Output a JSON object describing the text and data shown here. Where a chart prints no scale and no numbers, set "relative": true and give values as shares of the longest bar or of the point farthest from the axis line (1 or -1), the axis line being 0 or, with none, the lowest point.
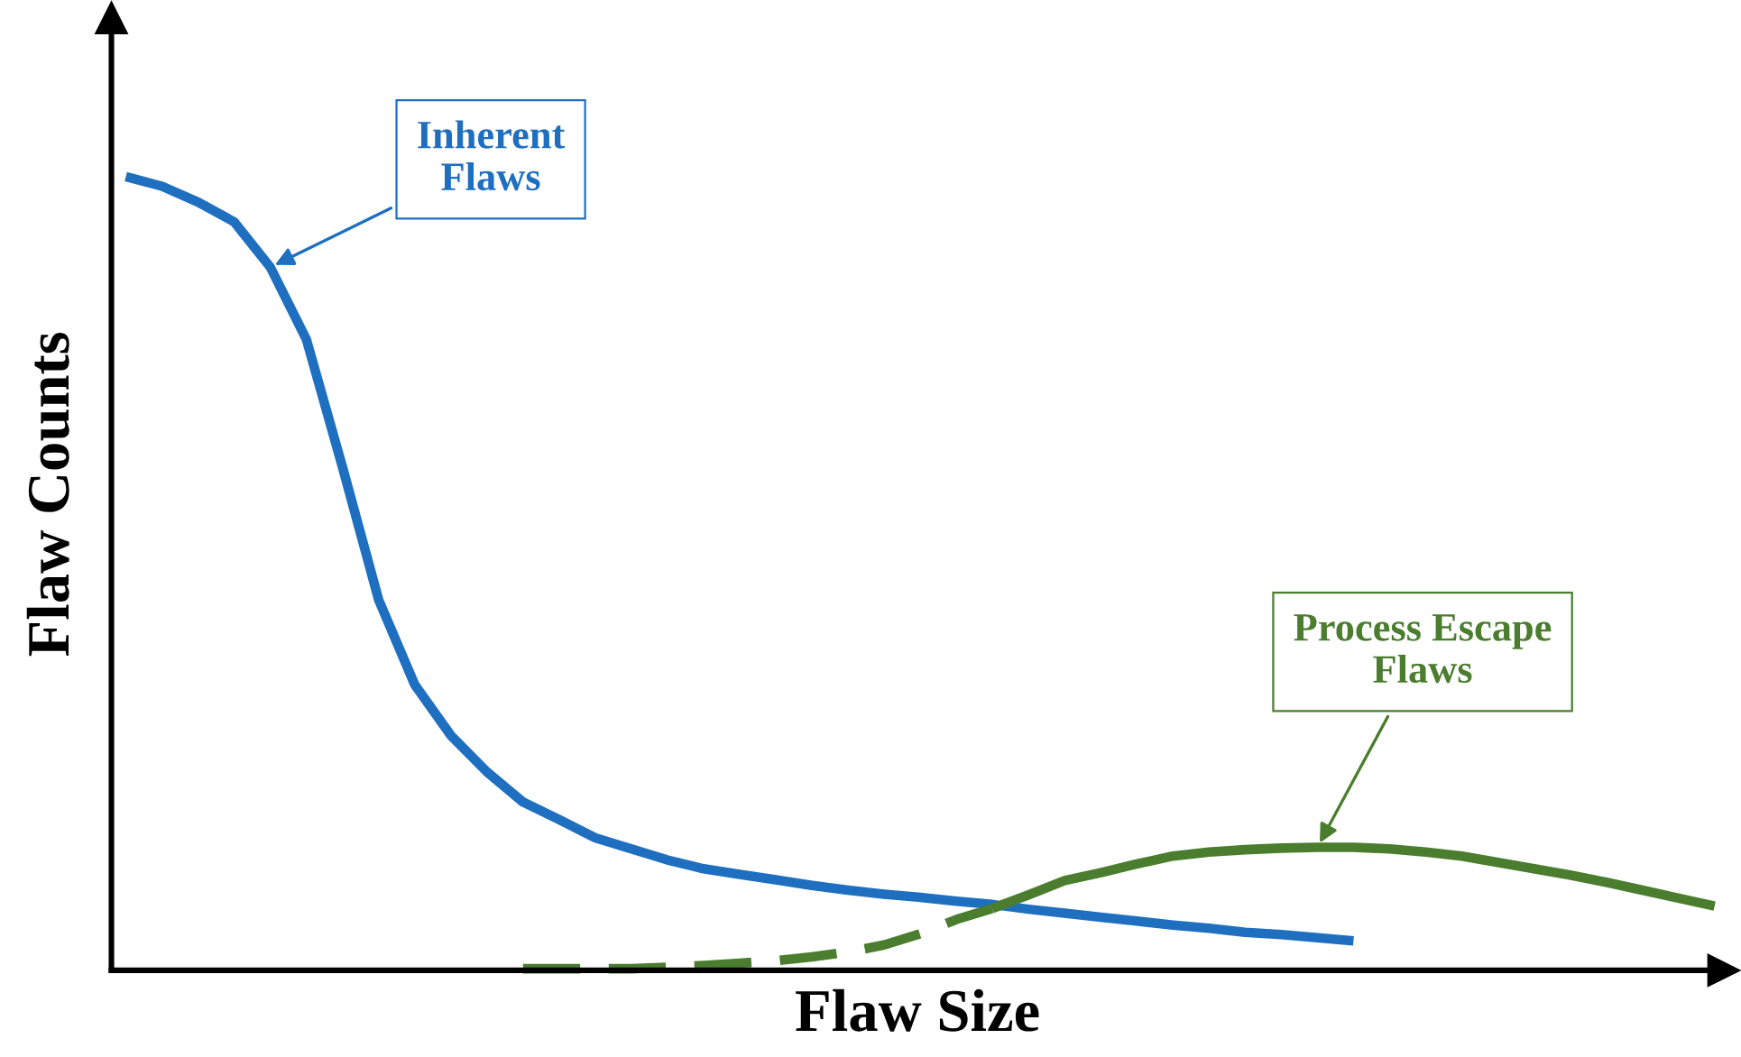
{
  "chart_data": {
    "type": "line",
    "relative": true,
    "xlabel": "Flaw Size",
    "ylabel": "Flaw Counts",
    "marker": "none",
    "categories": [
      null,
      null,
      null,
      null,
      null,
      null,
      null,
      null,
      null,
      null,
      null,
      null,
      null,
      null,
      null,
      null,
      null,
      null,
      null,
      null,
      null,
      null,
      null,
      null,
      null,
      null,
      null,
      null,
      null,
      null,
      null,
      null,
      null,
      null,
      null,
      null,
      null,
      null,
      null,
      null,
      null,
      null,
      null,
      null,
      null
    ],
    "series": [
      {
        "color": "#1f6fc0",
        "line_style": "solid",
        "values": [
          1.0,
          0.988,
          0.968,
          0.943,
          0.886,
          0.795,
          0.634,
          0.467,
          0.36,
          0.296,
          0.25,
          0.212,
          0.19,
          0.167,
          0.153,
          0.139,
          0.128,
          0.121,
          0.114,
          0.107,
          0.101,
          0.096,
          0.092,
          0.087,
          0.083,
          0.077,
          0.072,
          0.067,
          0.062,
          0.057,
          0.053,
          0.048,
          0.045,
          0.041,
          0.037,
          null,
          null,
          null,
          null,
          null,
          null,
          null,
          null,
          null,
          null
        ]
      },
      {
        "color": "#4a7d2e",
        "line_style": "solid",
        "values": [
          null,
          null,
          null,
          null,
          null,
          null,
          null,
          null,
          null,
          null,
          null,
          null,
          null,
          null,
          null,
          null,
          null,
          null,
          null,
          null,
          null,
          null,
          null,
          null,
          0.078,
          0.095,
          0.113,
          0.123,
          0.134,
          0.144,
          0.149,
          0.152,
          0.154,
          0.155,
          0.155,
          0.153,
          0.149,
          0.144,
          0.136,
          0.128,
          0.12,
          0.111,
          0.101,
          0.091,
          0.081
        ]
      },
      {
        "color": "#4a7d2e",
        "line_style": "dashed",
        "values": [
          null,
          null,
          null,
          null,
          null,
          null,
          null,
          null,
          null,
          null,
          null,
          0.002,
          0.002,
          0.002,
          0.002,
          0.004,
          0.006,
          0.009,
          0.012,
          0.017,
          0.023,
          0.032,
          0.046,
          0.064,
          0.078,
          null,
          null,
          null,
          null,
          null,
          null,
          null,
          null,
          null,
          null,
          null,
          null,
          null,
          null,
          null,
          null,
          null,
          null,
          null,
          null
        ]
      }
    ],
    "annotations": [
      "Inherent\nFlaws",
      "Process Escape\nFlaws"
    ]
  }
}
